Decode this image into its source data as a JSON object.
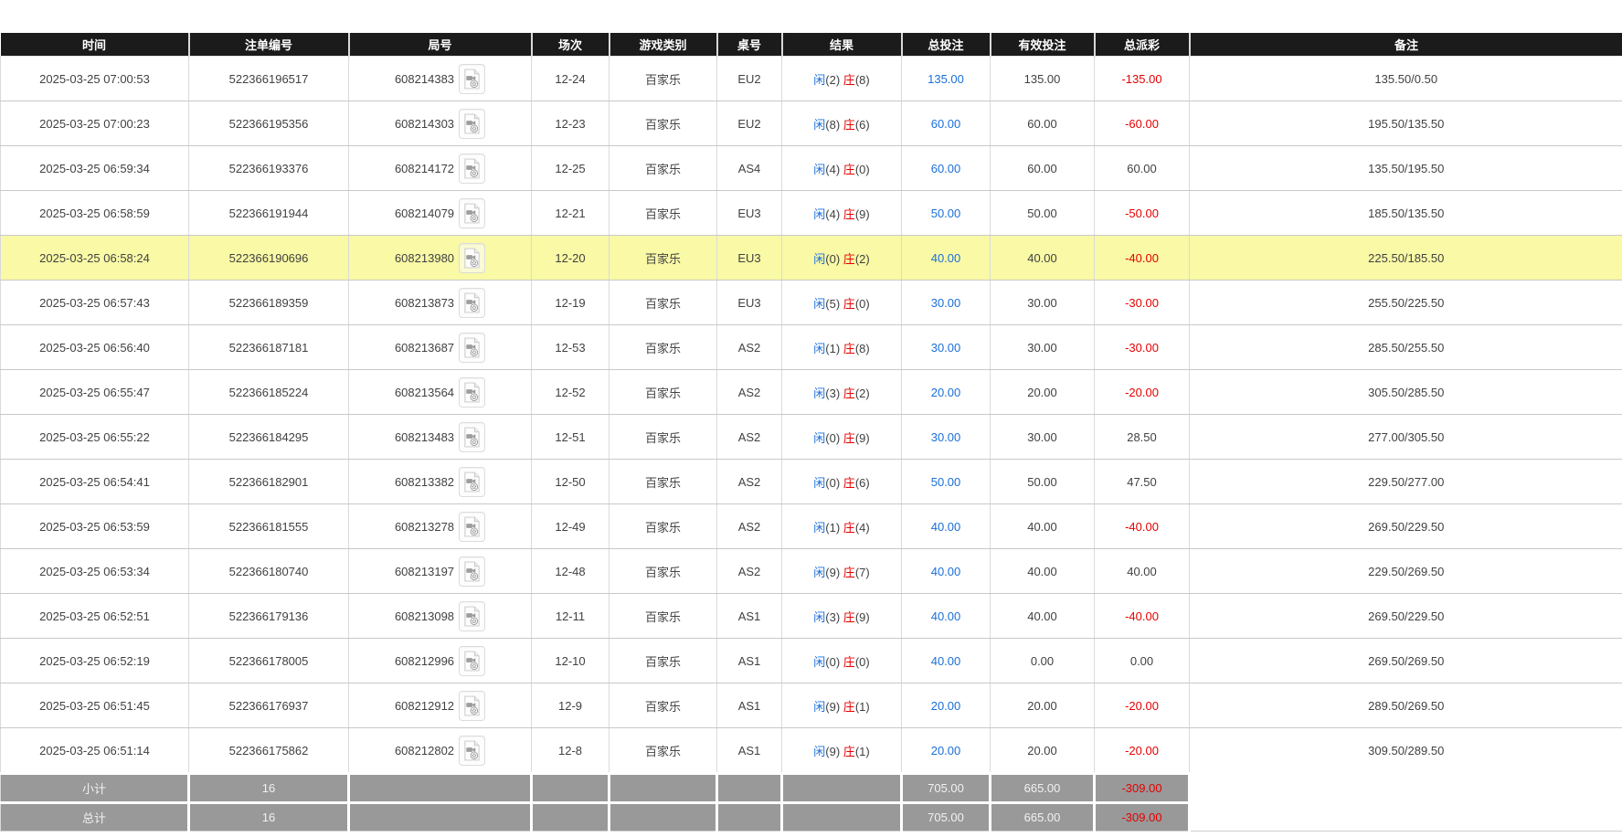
{
  "table": {
    "columns": [
      {
        "label": "时间"
      },
      {
        "label": "注单编号"
      },
      {
        "label": "局号"
      },
      {
        "label": "场次"
      },
      {
        "label": "游戏类别"
      },
      {
        "label": "桌号"
      },
      {
        "label": "结果"
      },
      {
        "label": "总投注"
      },
      {
        "label": "有效投注"
      },
      {
        "label": "总派彩"
      },
      {
        "label": "备注"
      }
    ],
    "result_labels": {
      "player": "闲",
      "banker": "庄"
    },
    "rows": [
      {
        "time": "2025-03-25 07:00:53",
        "bet_id": "522366196517",
        "round_id": "608214383",
        "session": "12-24",
        "game_type": "百家乐",
        "table_no": "EU2",
        "player": "2",
        "banker": "8",
        "total_bet": "135.00",
        "valid_bet": "135.00",
        "total_payout": "-135.00",
        "remark": "135.50/0.50",
        "highlighted": false
      },
      {
        "time": "2025-03-25 07:00:23",
        "bet_id": "522366195356",
        "round_id": "608214303",
        "session": "12-23",
        "game_type": "百家乐",
        "table_no": "EU2",
        "player": "8",
        "banker": "6",
        "total_bet": "60.00",
        "valid_bet": "60.00",
        "total_payout": "-60.00",
        "remark": "195.50/135.50",
        "highlighted": false
      },
      {
        "time": "2025-03-25 06:59:34",
        "bet_id": "522366193376",
        "round_id": "608214172",
        "session": "12-25",
        "game_type": "百家乐",
        "table_no": "AS4",
        "player": "4",
        "banker": "0",
        "total_bet": "60.00",
        "valid_bet": "60.00",
        "total_payout": "60.00",
        "remark": "135.50/195.50",
        "highlighted": false
      },
      {
        "time": "2025-03-25 06:58:59",
        "bet_id": "522366191944",
        "round_id": "608214079",
        "session": "12-21",
        "game_type": "百家乐",
        "table_no": "EU3",
        "player": "4",
        "banker": "9",
        "total_bet": "50.00",
        "valid_bet": "50.00",
        "total_payout": "-50.00",
        "remark": "185.50/135.50",
        "highlighted": false
      },
      {
        "time": "2025-03-25 06:58:24",
        "bet_id": "522366190696",
        "round_id": "608213980",
        "session": "12-20",
        "game_type": "百家乐",
        "table_no": "EU3",
        "player": "0",
        "banker": "2",
        "total_bet": "40.00",
        "valid_bet": "40.00",
        "total_payout": "-40.00",
        "remark": "225.50/185.50",
        "highlighted": true
      },
      {
        "time": "2025-03-25 06:57:43",
        "bet_id": "522366189359",
        "round_id": "608213873",
        "session": "12-19",
        "game_type": "百家乐",
        "table_no": "EU3",
        "player": "5",
        "banker": "0",
        "total_bet": "30.00",
        "valid_bet": "30.00",
        "total_payout": "-30.00",
        "remark": "255.50/225.50",
        "highlighted": false
      },
      {
        "time": "2025-03-25 06:56:40",
        "bet_id": "522366187181",
        "round_id": "608213687",
        "session": "12-53",
        "game_type": "百家乐",
        "table_no": "AS2",
        "player": "1",
        "banker": "8",
        "total_bet": "30.00",
        "valid_bet": "30.00",
        "total_payout": "-30.00",
        "remark": "285.50/255.50",
        "highlighted": false
      },
      {
        "time": "2025-03-25 06:55:47",
        "bet_id": "522366185224",
        "round_id": "608213564",
        "session": "12-52",
        "game_type": "百家乐",
        "table_no": "AS2",
        "player": "3",
        "banker": "2",
        "total_bet": "20.00",
        "valid_bet": "20.00",
        "total_payout": "-20.00",
        "remark": "305.50/285.50",
        "highlighted": false
      },
      {
        "time": "2025-03-25 06:55:22",
        "bet_id": "522366184295",
        "round_id": "608213483",
        "session": "12-51",
        "game_type": "百家乐",
        "table_no": "AS2",
        "player": "0",
        "banker": "9",
        "total_bet": "30.00",
        "valid_bet": "30.00",
        "total_payout": "28.50",
        "remark": "277.00/305.50",
        "highlighted": false
      },
      {
        "time": "2025-03-25 06:54:41",
        "bet_id": "522366182901",
        "round_id": "608213382",
        "session": "12-50",
        "game_type": "百家乐",
        "table_no": "AS2",
        "player": "0",
        "banker": "6",
        "total_bet": "50.00",
        "valid_bet": "50.00",
        "total_payout": "47.50",
        "remark": "229.50/277.00",
        "highlighted": false
      },
      {
        "time": "2025-03-25 06:53:59",
        "bet_id": "522366181555",
        "round_id": "608213278",
        "session": "12-49",
        "game_type": "百家乐",
        "table_no": "AS2",
        "player": "1",
        "banker": "4",
        "total_bet": "40.00",
        "valid_bet": "40.00",
        "total_payout": "-40.00",
        "remark": "269.50/229.50",
        "highlighted": false
      },
      {
        "time": "2025-03-25 06:53:34",
        "bet_id": "522366180740",
        "round_id": "608213197",
        "session": "12-48",
        "game_type": "百家乐",
        "table_no": "AS2",
        "player": "9",
        "banker": "7",
        "total_bet": "40.00",
        "valid_bet": "40.00",
        "total_payout": "40.00",
        "remark": "229.50/269.50",
        "highlighted": false
      },
      {
        "time": "2025-03-25 06:52:51",
        "bet_id": "522366179136",
        "round_id": "608213098",
        "session": "12-11",
        "game_type": "百家乐",
        "table_no": "AS1",
        "player": "3",
        "banker": "9",
        "total_bet": "40.00",
        "valid_bet": "40.00",
        "total_payout": "-40.00",
        "remark": "269.50/229.50",
        "highlighted": false
      },
      {
        "time": "2025-03-25 06:52:19",
        "bet_id": "522366178005",
        "round_id": "608212996",
        "session": "12-10",
        "game_type": "百家乐",
        "table_no": "AS1",
        "player": "0",
        "banker": "0",
        "total_bet": "40.00",
        "valid_bet": "0.00",
        "total_payout": "0.00",
        "remark": "269.50/269.50",
        "highlighted": false
      },
      {
        "time": "2025-03-25 06:51:45",
        "bet_id": "522366176937",
        "round_id": "608212912",
        "session": "12-9",
        "game_type": "百家乐",
        "table_no": "AS1",
        "player": "9",
        "banker": "1",
        "total_bet": "20.00",
        "valid_bet": "20.00",
        "total_payout": "-20.00",
        "remark": "289.50/269.50",
        "highlighted": false
      },
      {
        "time": "2025-03-25 06:51:14",
        "bet_id": "522366175862",
        "round_id": "608212802",
        "session": "12-8",
        "game_type": "百家乐",
        "table_no": "AS1",
        "player": "9",
        "banker": "1",
        "total_bet": "20.00",
        "valid_bet": "20.00",
        "total_payout": "-20.00",
        "remark": "309.50/289.50",
        "highlighted": false
      }
    ],
    "footer": [
      {
        "label": "小计",
        "count": "16",
        "total_bet": "705.00",
        "valid_bet": "665.00",
        "total_payout": "-309.00"
      },
      {
        "label": "总计",
        "count": "16",
        "total_bet": "705.00",
        "valid_bet": "665.00",
        "total_payout": "-309.00"
      }
    ]
  },
  "icons": {
    "round_video": "video-replay-icon"
  },
  "colors": {
    "header_bg": "#1b1b1b",
    "accent_blue": "#1b6fd8",
    "negative_red": "#e60000",
    "highlight_yellow": "#f9f9a6",
    "footer_bg": "#999999"
  }
}
